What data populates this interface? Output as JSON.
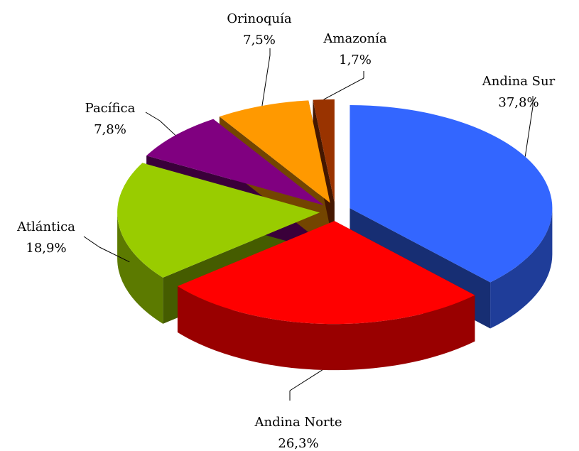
{
  "chart_data": {
    "type": "pie3d",
    "categories": [
      "Andina Sur",
      "Andina Norte",
      "Atlántica",
      "Pacífica",
      "Orinoquía",
      "Amazonía"
    ],
    "values": [
      37.8,
      26.3,
      18.9,
      7.8,
      7.5,
      1.7
    ],
    "value_labels": [
      "37,8%",
      "26,3%",
      "18,9%",
      "7,8%",
      "7,5%",
      "1,7%"
    ],
    "colors": [
      "#3366ff",
      "#ff0000",
      "#99cc00",
      "#800080",
      "#ff9900",
      "#993300"
    ]
  }
}
